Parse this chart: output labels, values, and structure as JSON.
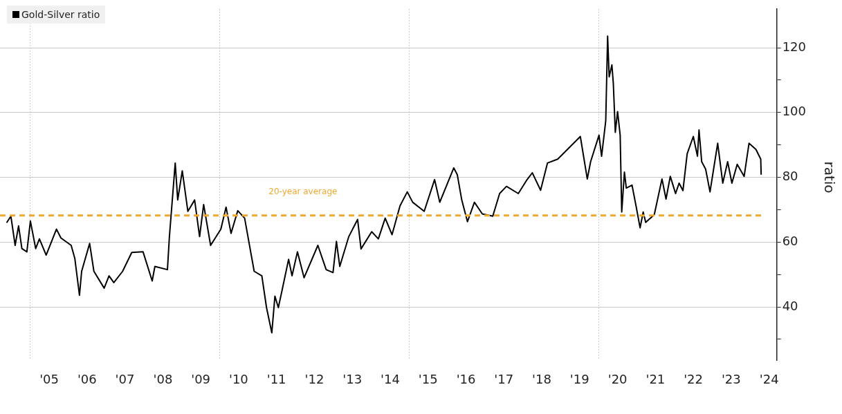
{
  "chart_data": {
    "type": "line",
    "ylabel": "ratio",
    "legend": "top left",
    "grid": true,
    "marker": "none",
    "line_style": "solid",
    "xlim": [
      "2004-03-14",
      "2024-09-12"
    ],
    "ylim": [
      23.5,
      132
    ],
    "xticks": [
      {
        "value": "2005-01-01",
        "label": null
      },
      {
        "value": "2005-07-01",
        "label": "'05"
      },
      {
        "value": "2006-07-01",
        "label": "'06"
      },
      {
        "value": "2007-07-01",
        "label": "'07"
      },
      {
        "value": "2008-07-01",
        "label": "'08"
      },
      {
        "value": "2009-07-01",
        "label": "'09"
      },
      {
        "value": "2010-01-01",
        "label": null
      },
      {
        "value": "2010-07-01",
        "label": "'10"
      },
      {
        "value": "2011-07-01",
        "label": "'11"
      },
      {
        "value": "2012-07-01",
        "label": "'12"
      },
      {
        "value": "2013-07-01",
        "label": "'13"
      },
      {
        "value": "2014-07-01",
        "label": "'14"
      },
      {
        "value": "2015-01-01",
        "label": null
      },
      {
        "value": "2015-07-01",
        "label": "'15"
      },
      {
        "value": "2016-07-01",
        "label": "'16"
      },
      {
        "value": "2017-07-01",
        "label": "'17"
      },
      {
        "value": "2018-07-01",
        "label": "'18"
      },
      {
        "value": "2019-07-01",
        "label": "'19"
      },
      {
        "value": "2020-01-01",
        "label": null
      },
      {
        "value": "2020-07-01",
        "label": "'20"
      },
      {
        "value": "2021-07-01",
        "label": "'21"
      },
      {
        "value": "2022-07-01",
        "label": "'22"
      },
      {
        "value": "2023-07-01",
        "label": "'23"
      },
      {
        "value": "2024-07-01",
        "label": "'24"
      }
    ],
    "yticks": [
      {
        "value": 30,
        "label": null
      },
      40,
      {
        "value": 50,
        "label": null
      },
      60,
      {
        "value": 70,
        "label": null
      },
      80,
      {
        "value": 90,
        "label": null
      },
      100,
      {
        "value": 110,
        "label": null
      },
      120
    ],
    "ref_lines": [
      {
        "axis": "y",
        "value": 68.2,
        "label": "20-year average",
        "color": "#f0a830",
        "line_style": "dashed"
      }
    ],
    "series": [
      {
        "name": "Gold-Silver ratio",
        "color": "#000000",
        "x": [
          "2004-05-17",
          "2004-06-27",
          "2004-08-07",
          "2004-09-09",
          "2004-10-11",
          "2004-11-28",
          "2005-01-01",
          "2005-02-21",
          "2005-03-29",
          "2005-06-02",
          "2005-09-09",
          "2005-10-22",
          "2006-01-29",
          "2006-03-05",
          "2006-04-19",
          "2006-05-10",
          "2006-07-26",
          "2006-09-05",
          "2006-12-13",
          "2007-01-29",
          "2007-03-16",
          "2007-06-09",
          "2007-09-05",
          "2007-12-23",
          "2008-03-20",
          "2008-04-15",
          "2008-08-14",
          "2008-09-02",
          "2008-10-28",
          "2008-11-21",
          "2009-01-04",
          "2009-02-27",
          "2009-05-03",
          "2009-06-20",
          "2009-07-29",
          "2009-10-04",
          "2010-01-11",
          "2010-03-02",
          "2010-04-19",
          "2010-06-23",
          "2010-08-28",
          "2010-11-28",
          "2011-02-10",
          "2011-03-27",
          "2011-05-17",
          "2011-06-16",
          "2011-07-19",
          "2011-08-25",
          "2011-10-26",
          "2011-11-28",
          "2012-01-19",
          "2012-03-23",
          "2012-08-03",
          "2012-10-22",
          "2012-12-27",
          "2013-01-29",
          "2013-03-02",
          "2013-05-28",
          "2013-08-21",
          "2013-09-23",
          "2014-01-04",
          "2014-03-09",
          "2014-05-14",
          "2014-07-19",
          "2014-10-04",
          "2014-12-13",
          "2015-02-03",
          "2015-05-25",
          "2015-09-02",
          "2015-10-22",
          "2016-03-05",
          "2016-04-08",
          "2016-05-21",
          "2016-07-15",
          "2016-09-20",
          "2016-12-05",
          "2017-03-16",
          "2017-05-21",
          "2017-07-26",
          "2017-11-17",
          "2018-02-10",
          "2018-04-01",
          "2018-06-20",
          "2018-08-25",
          "2018-12-02",
          "2019-07-08",
          "2019-09-13",
          "2019-10-15",
          "2020-01-04",
          "2020-01-29",
          "2020-03-09",
          "2020-03-27",
          "2020-04-11",
          "2020-05-07",
          "2020-05-21",
          "2020-06-09",
          "2020-07-01",
          "2020-07-26",
          "2020-08-10",
          "2020-09-05",
          "2020-09-23",
          "2020-11-17",
          "2020-12-27",
          "2021-02-03",
          "2021-03-05",
          "2021-03-29",
          "2021-06-20",
          "2021-09-02",
          "2021-10-11",
          "2021-11-21",
          "2022-01-11",
          "2022-02-14",
          "2022-03-23",
          "2022-05-03",
          "2022-07-01",
          "2022-08-10",
          "2022-08-25",
          "2022-09-20",
          "2022-10-28",
          "2022-12-09",
          "2023-02-21",
          "2023-04-11",
          "2023-05-28",
          "2023-07-08",
          "2023-08-28",
          "2023-11-03",
          "2023-12-20",
          "2024-02-25",
          "2024-04-11",
          "2024-04-15"
        ],
        "values": [
          66,
          68,
          59,
          65,
          58,
          57,
          66.5,
          58,
          61,
          56,
          64,
          61.3,
          59,
          55,
          43.6,
          51,
          59.6,
          51,
          45.8,
          49.6,
          47.5,
          51,
          56.8,
          57,
          48,
          52.5,
          51.5,
          61.7,
          84.4,
          73,
          82,
          69.5,
          73,
          61.7,
          71.6,
          59,
          64,
          70.8,
          62.7,
          69.7,
          67.4,
          51,
          49.6,
          39.8,
          32,
          43.3,
          39.8,
          45.3,
          54.7,
          49.6,
          57,
          49,
          59,
          51.5,
          50.6,
          60.2,
          52.5,
          61.7,
          67,
          57.9,
          63.2,
          61,
          67.4,
          62.3,
          71.2,
          75.5,
          72.3,
          69.5,
          79.3,
          72.3,
          82.9,
          80.8,
          73,
          66.3,
          72.3,
          68.7,
          68,
          75,
          77.2,
          75,
          79.3,
          81.4,
          76,
          84.4,
          85.6,
          92.6,
          79.5,
          84.8,
          93,
          86.5,
          97.5,
          123.6,
          111,
          114.7,
          109,
          93.9,
          100.3,
          93,
          69.3,
          81.6,
          76.7,
          77.6,
          71,
          64.4,
          69.3,
          66.1,
          68.5,
          79.5,
          73.3,
          80.3,
          75,
          78.2,
          75.9,
          87.3,
          92.6,
          86.5,
          94.6,
          84.8,
          82.5,
          75.5,
          90.5,
          78.2,
          84.8,
          78.2,
          84,
          80.3,
          90.5,
          88.6,
          85.6,
          80.8
        ]
      }
    ]
  }
}
